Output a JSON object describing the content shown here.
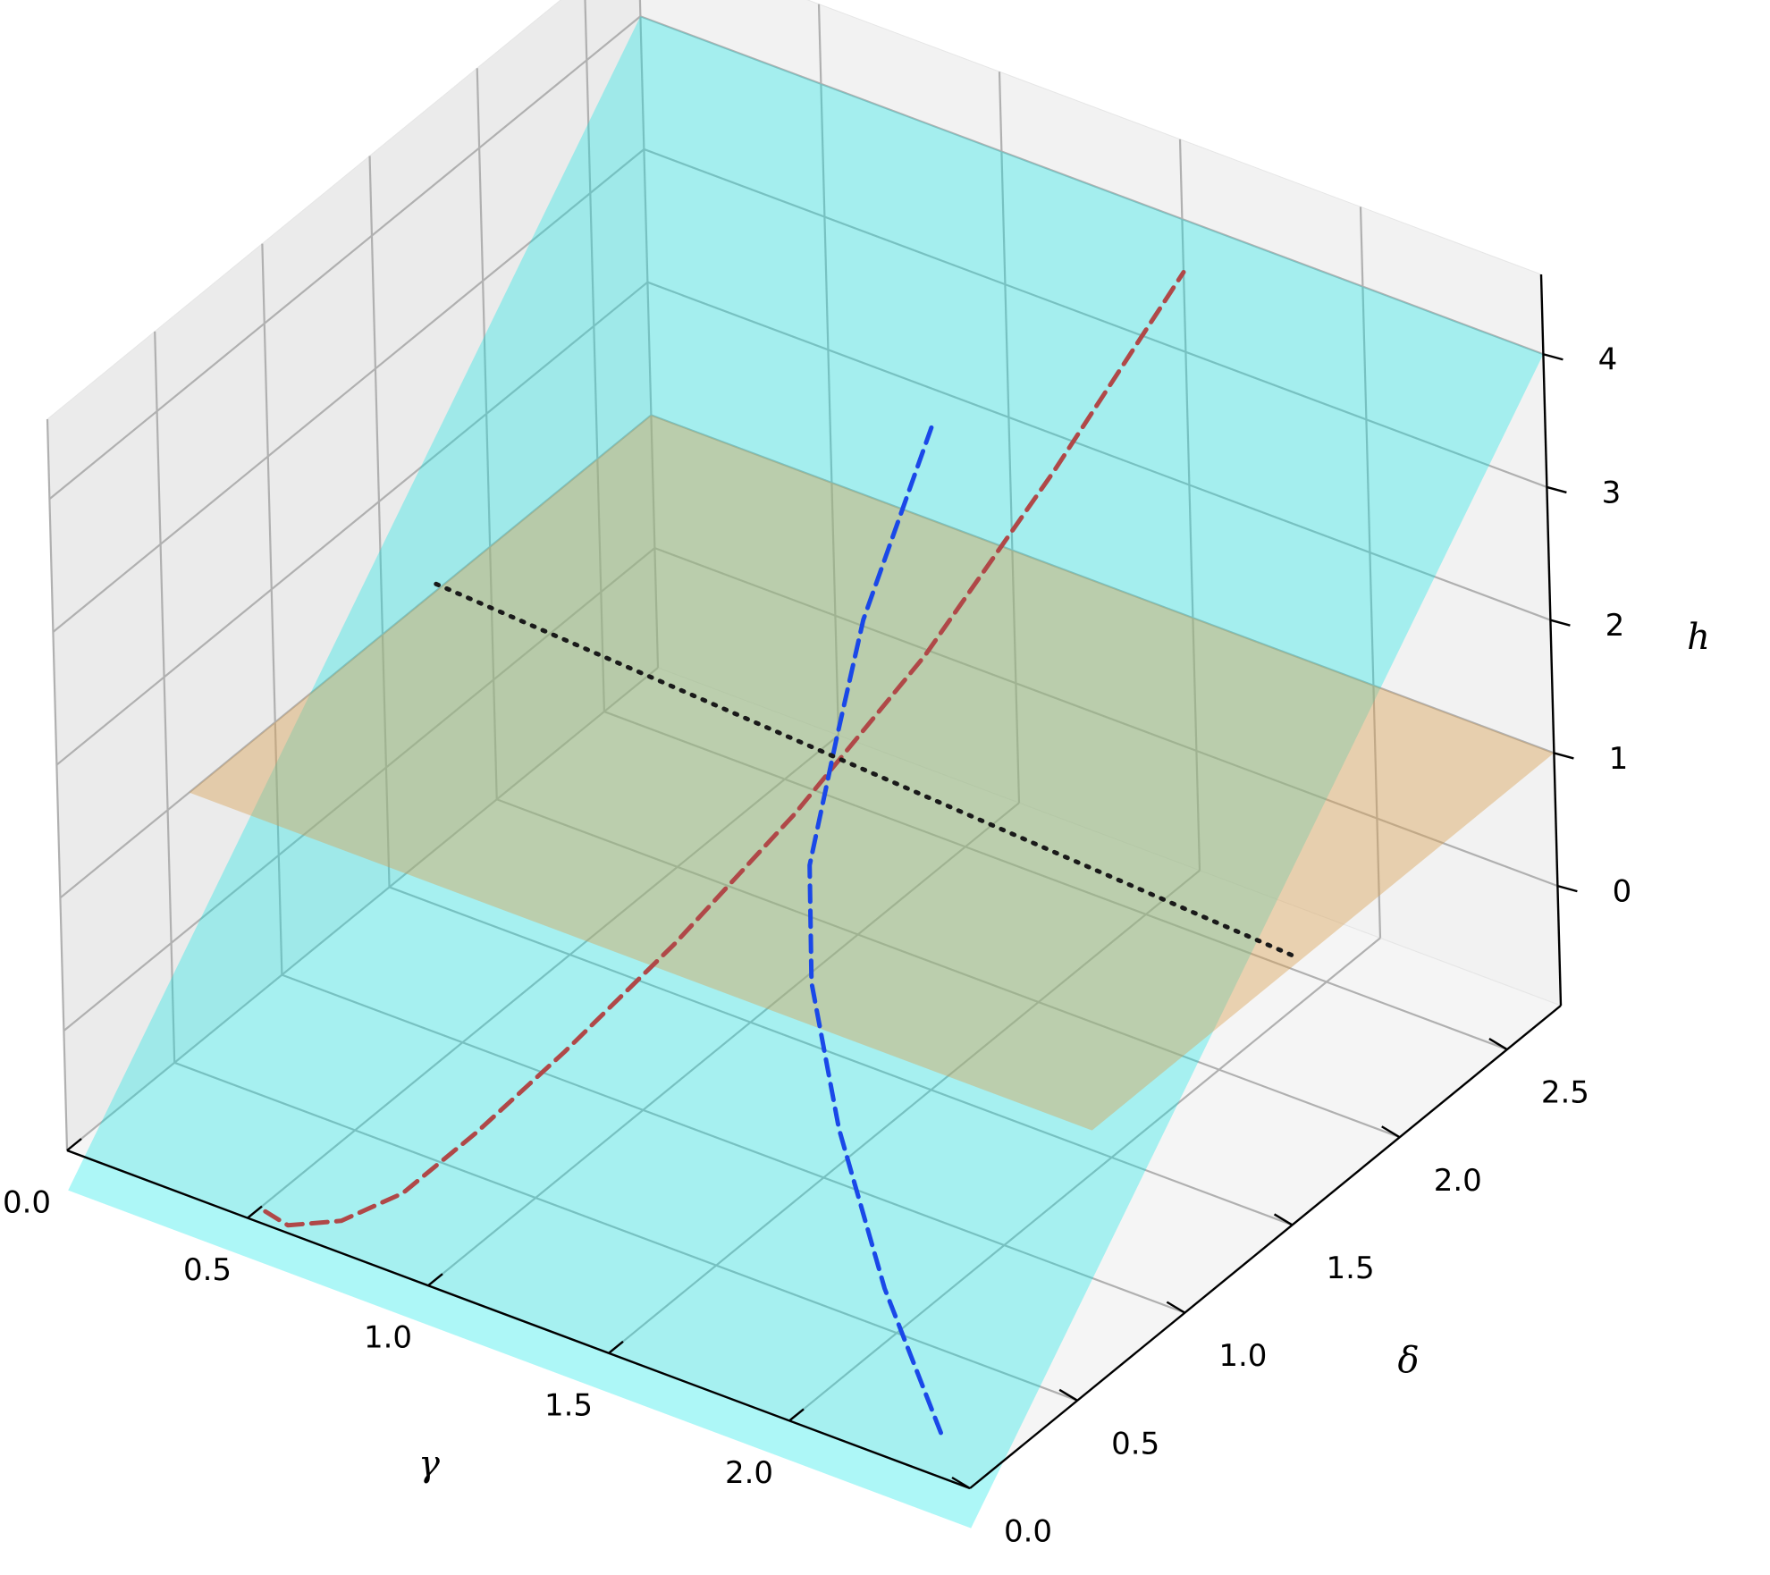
{
  "chart_data": {
    "type": "surface3d",
    "axes": {
      "gamma": {
        "label": "γ",
        "lim": [
          0,
          2.5
        ],
        "ticks": [
          0.0,
          0.5,
          1.0,
          1.5,
          2.0
        ],
        "tick_labels": [
          "0.0",
          "0.5",
          "1.0",
          "1.5",
          "2.0"
        ]
      },
      "delta": {
        "label": "δ",
        "lim": [
          0,
          2.75
        ],
        "ticks": [
          0.0,
          0.5,
          1.0,
          1.5,
          2.0,
          2.5
        ],
        "tick_labels": [
          "0.0",
          "0.5",
          "1.0",
          "1.5",
          "2.0",
          "2.5"
        ]
      },
      "h": {
        "label": "h",
        "lim": [
          -0.9,
          4.6
        ],
        "ticks": [
          0,
          1,
          2,
          3,
          4
        ],
        "tick_labels": [
          "0",
          "1",
          "2",
          "3",
          "4"
        ]
      }
    },
    "grid": true,
    "surfaces": [
      {
        "id": "tilted-plane",
        "color": "#00e5e5",
        "opacity": 0.32,
        "corners": [
          [
            0.0,
            0.0,
            -1.2
          ],
          [
            2.5,
            0.0,
            -1.2
          ],
          [
            2.5,
            2.75,
            4.0
          ],
          [
            0.0,
            2.75,
            4.0
          ]
        ]
      },
      {
        "id": "flat-plane",
        "color": "#d8a050",
        "opacity": 0.42,
        "corners": [
          [
            0.0,
            0.6,
            1.0
          ],
          [
            2.5,
            0.6,
            1.0
          ],
          [
            2.5,
            2.75,
            1.0
          ],
          [
            0.0,
            2.75,
            1.0
          ]
        ]
      }
    ],
    "series": [
      {
        "id": "red-dashed",
        "color": "#b04848",
        "style": "dashed",
        "points": [
          [
            0.55,
            0.0,
            -0.8
          ],
          [
            0.6,
            0.02,
            -0.88
          ],
          [
            0.7,
            0.1,
            -0.85
          ],
          [
            0.8,
            0.22,
            -0.7
          ],
          [
            0.9,
            0.4,
            -0.38
          ],
          [
            1.0,
            0.65,
            0.0
          ],
          [
            1.1,
            1.0,
            0.45
          ],
          [
            1.2,
            1.4,
            1.0
          ],
          [
            1.3,
            1.85,
            1.7
          ],
          [
            1.4,
            2.3,
            2.6
          ],
          [
            1.5,
            2.75,
            3.6
          ]
        ]
      },
      {
        "id": "blue-dashed",
        "color": "#1a48e8",
        "style": "dashed",
        "points": [
          [
            2.3,
            0.2,
            -0.95
          ],
          [
            2.0,
            0.45,
            -0.5
          ],
          [
            1.7,
            0.75,
            0.0
          ],
          [
            1.45,
            1.05,
            0.45
          ],
          [
            1.3,
            1.3,
            0.85
          ],
          [
            1.2,
            1.6,
            1.3
          ],
          [
            1.1,
            1.9,
            1.7
          ],
          [
            1.05,
            2.15,
            2.05
          ],
          [
            1.0,
            2.4,
            2.4
          ]
        ]
      },
      {
        "id": "black-dotted",
        "color": "#1a1a1a",
        "style": "dotted",
        "points": [
          [
            0.0,
            1.75,
            1.05
          ],
          [
            2.5,
            1.55,
            1.05
          ]
        ]
      }
    ]
  }
}
